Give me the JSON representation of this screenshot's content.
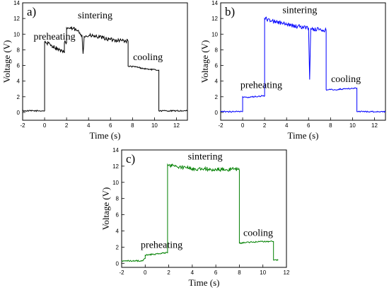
{
  "chart_data": [
    {
      "type": "line",
      "panel_label": "a)",
      "xlabel": "Time (s)",
      "ylabel": "Voltage (V)",
      "xlim": [
        -2,
        13
      ],
      "ylim": [
        -1,
        14
      ],
      "xticks": [
        -2,
        0,
        2,
        4,
        6,
        8,
        10,
        12
      ],
      "yticks": [
        0,
        2,
        4,
        6,
        8,
        10,
        12,
        14
      ],
      "color": "#000000",
      "series": [
        {
          "x": [
            -2,
            0,
            0,
            0.6,
            1.2,
            1.8,
            1.8,
            2.0,
            2.0,
            2.6,
            3.0,
            3.4,
            3.5,
            3.6,
            4.2,
            5.0,
            6.0,
            7.0,
            7.6,
            7.6,
            8.4,
            9.0,
            9.6,
            10.4,
            10.4,
            13
          ],
          "y": [
            0.2,
            0.2,
            9.0,
            8.6,
            8.1,
            7.6,
            8.9,
            8.9,
            10.8,
            10.7,
            10.4,
            9.9,
            7.5,
            9.7,
            9.8,
            9.6,
            9.3,
            9.2,
            9.1,
            5.9,
            5.8,
            5.6,
            5.5,
            5.4,
            0.2,
            0.2
          ]
        }
      ],
      "annotations": [
        {
          "text": "preheating",
          "x": 0.9,
          "y": 9.3
        },
        {
          "text": "sintering",
          "x": 4.6,
          "y": 12.0
        },
        {
          "text": "cooling",
          "x": 9.4,
          "y": 6.7
        }
      ]
    },
    {
      "type": "line",
      "panel_label": "b)",
      "xlabel": "Time (s)",
      "ylabel": "Voltage (V)",
      "xlim": [
        -2,
        13
      ],
      "ylim": [
        -1,
        14
      ],
      "xticks": [
        -2,
        0,
        2,
        4,
        6,
        8,
        10,
        12
      ],
      "yticks": [
        0,
        2,
        4,
        6,
        8,
        10,
        12,
        14
      ],
      "color": "#0000ff",
      "series": [
        {
          "x": [
            -2,
            0,
            0,
            0.4,
            1.0,
            1.8,
            2.0,
            2.0,
            3.0,
            4.0,
            5.0,
            6.0,
            6.1,
            6.2,
            7.0,
            7.6,
            7.6,
            8.4,
            9.2,
            10.2,
            10.4,
            10.4,
            13
          ],
          "y": [
            0.1,
            0.1,
            2.0,
            1.9,
            2.0,
            2.1,
            2.1,
            12.0,
            11.6,
            11.2,
            11.0,
            10.8,
            4.2,
            10.7,
            10.6,
            10.5,
            2.9,
            2.9,
            3.0,
            3.1,
            3.1,
            0.1,
            0.1
          ]
        }
      ],
      "annotations": [
        {
          "text": "preheating",
          "x": 1.7,
          "y": 3.1
        },
        {
          "text": "sintering",
          "x": 5.2,
          "y": 12.7
        },
        {
          "text": "cooling",
          "x": 9.4,
          "y": 3.9
        }
      ]
    },
    {
      "type": "line",
      "panel_label": "c)",
      "xlabel": "Time (s)",
      "ylabel": "Voltage (V)",
      "xlim": [
        -2,
        12
      ],
      "ylim": [
        -0.5,
        14
      ],
      "xticks": [
        -2,
        0,
        2,
        4,
        6,
        8,
        10,
        12
      ],
      "yticks": [
        0,
        2,
        4,
        6,
        8,
        10,
        12,
        14
      ],
      "color": "#008000",
      "series": [
        {
          "x": [
            -2,
            -0.2,
            0,
            0,
            0.6,
            1.2,
            1.9,
            1.9,
            2.6,
            3.5,
            4.5,
            6.0,
            7.5,
            8.0,
            8.0,
            8.8,
            10.0,
            10.8,
            10.9,
            10.9,
            11.3
          ],
          "y": [
            0.3,
            0.3,
            0.6,
            1.0,
            1.1,
            1.2,
            1.3,
            12.2,
            12.0,
            11.8,
            11.7,
            11.6,
            11.6,
            11.5,
            2.5,
            2.6,
            2.7,
            2.7,
            2.7,
            0.4,
            0.4
          ]
        }
      ],
      "annotations": [
        {
          "text": "preheating",
          "x": 1.4,
          "y": 1.9
        },
        {
          "text": "sintering",
          "x": 5.1,
          "y": 12.8
        },
        {
          "text": "cooling",
          "x": 9.6,
          "y": 3.4
        }
      ]
    }
  ]
}
